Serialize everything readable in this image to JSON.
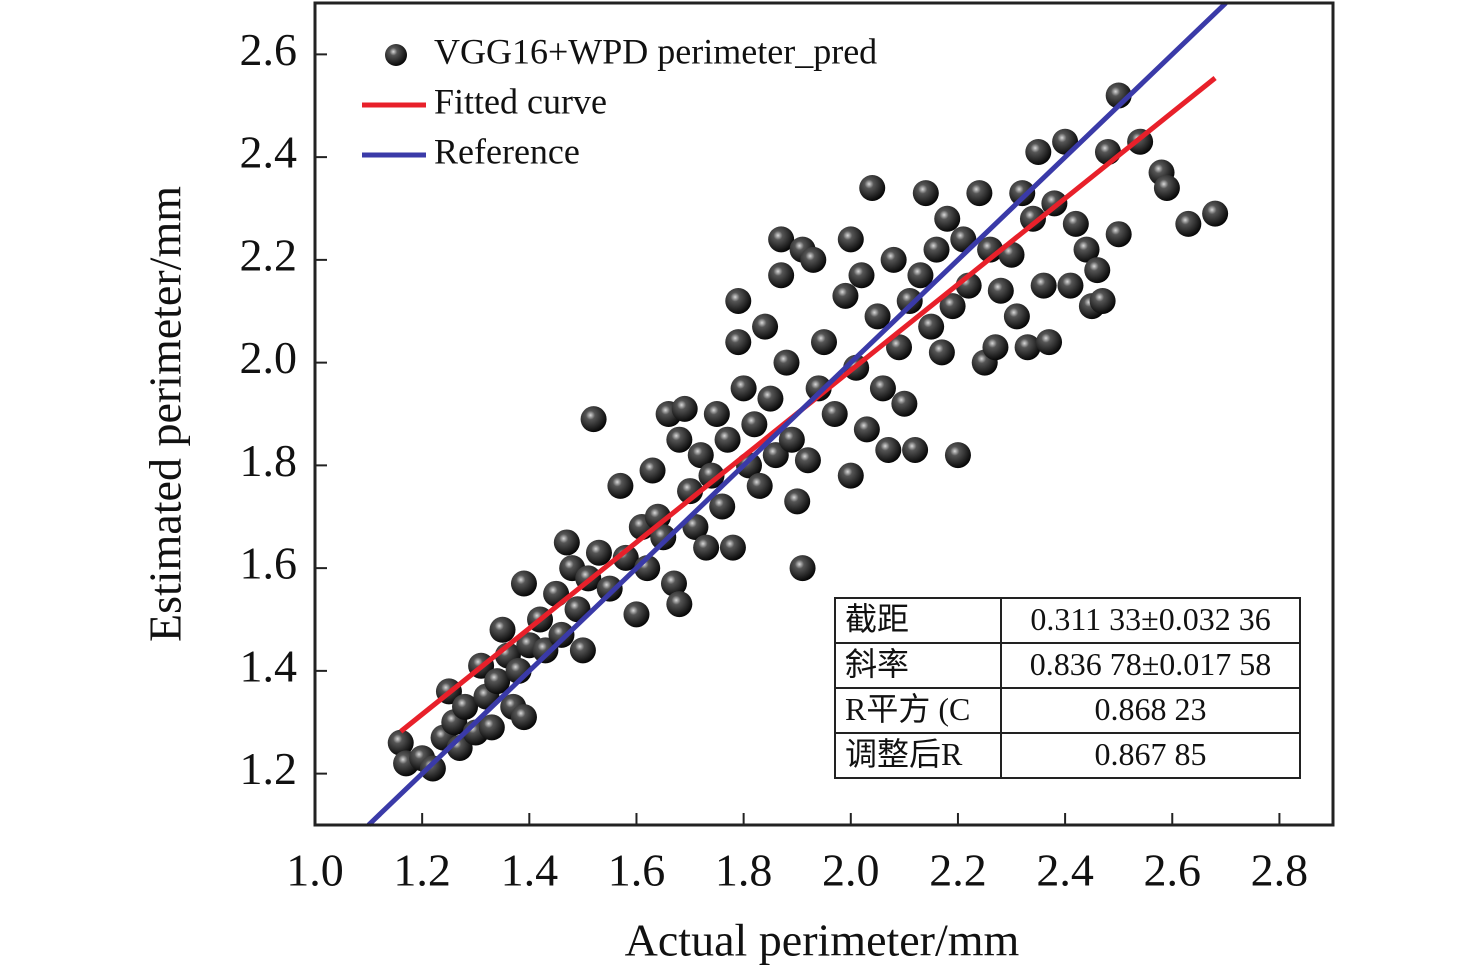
{
  "chart_data": {
    "type": "scatter",
    "xlabel": "Actual perimeter/mm",
    "ylabel": "Estimated perimeter/mm",
    "xlim": [
      1.0,
      2.9
    ],
    "ylim": [
      1.1,
      2.7
    ],
    "xticks": [
      {
        "value": 1.0,
        "label": "1.0"
      },
      1.2,
      1.4,
      1.6,
      1.8,
      {
        "value": 2.0,
        "label": "2.0"
      },
      2.2,
      2.4,
      2.6,
      2.8
    ],
    "yticks": [
      1.2,
      1.4,
      1.6,
      1.8,
      {
        "value": 2.0,
        "label": "2.0"
      },
      2.2,
      2.4,
      2.6
    ],
    "series": [
      {
        "name": "VGG16+WPD perimeter_pred",
        "style": "marker",
        "color": "#111111",
        "x": [
          1.16,
          1.17,
          1.2,
          1.22,
          1.24,
          1.25,
          1.26,
          1.27,
          1.28,
          1.3,
          1.31,
          1.32,
          1.33,
          1.34,
          1.35,
          1.36,
          1.37,
          1.38,
          1.39,
          1.39,
          1.4,
          1.42,
          1.43,
          1.45,
          1.46,
          1.47,
          1.48,
          1.49,
          1.5,
          1.51,
          1.52,
          1.53,
          1.55,
          1.57,
          1.58,
          1.6,
          1.61,
          1.62,
          1.63,
          1.64,
          1.65,
          1.66,
          1.67,
          1.68,
          1.68,
          1.69,
          1.7,
          1.71,
          1.72,
          1.73,
          1.74,
          1.75,
          1.76,
          1.77,
          1.78,
          1.79,
          1.79,
          1.8,
          1.81,
          1.82,
          1.83,
          1.84,
          1.85,
          1.86,
          1.87,
          1.87,
          1.88,
          1.89,
          1.9,
          1.91,
          1.91,
          1.92,
          1.93,
          1.94,
          1.95,
          1.97,
          1.99,
          2.0,
          2.0,
          2.01,
          2.02,
          2.03,
          2.04,
          2.05,
          2.06,
          2.07,
          2.08,
          2.09,
          2.1,
          2.11,
          2.12,
          2.13,
          2.14,
          2.15,
          2.16,
          2.17,
          2.18,
          2.19,
          2.2,
          2.21,
          2.22,
          2.24,
          2.25,
          2.26,
          2.27,
          2.28,
          2.3,
          2.31,
          2.32,
          2.33,
          2.34,
          2.35,
          2.36,
          2.37,
          2.38,
          2.4,
          2.41,
          2.42,
          2.44,
          2.45,
          2.46,
          2.47,
          2.48,
          2.5,
          2.5,
          2.54,
          2.58,
          2.59,
          2.63,
          2.68
        ],
        "y": [
          1.26,
          1.22,
          1.23,
          1.21,
          1.27,
          1.36,
          1.3,
          1.25,
          1.33,
          1.28,
          1.41,
          1.35,
          1.29,
          1.38,
          1.48,
          1.43,
          1.33,
          1.4,
          1.31,
          1.57,
          1.45,
          1.5,
          1.44,
          1.55,
          1.47,
          1.65,
          1.6,
          1.52,
          1.44,
          1.58,
          1.89,
          1.63,
          1.56,
          1.76,
          1.62,
          1.51,
          1.68,
          1.6,
          1.79,
          1.7,
          1.66,
          1.9,
          1.57,
          1.53,
          1.85,
          1.91,
          1.75,
          1.68,
          1.82,
          1.64,
          1.78,
          1.9,
          1.72,
          1.85,
          1.64,
          2.04,
          2.12,
          1.95,
          1.8,
          1.88,
          1.76,
          2.07,
          1.93,
          1.82,
          2.24,
          2.17,
          2.0,
          1.85,
          1.73,
          1.6,
          2.22,
          1.81,
          2.2,
          1.95,
          2.04,
          1.9,
          2.13,
          2.24,
          1.78,
          1.99,
          2.17,
          1.87,
          2.34,
          2.09,
          1.95,
          1.83,
          2.2,
          2.03,
          1.92,
          2.12,
          1.83,
          2.17,
          2.33,
          2.07,
          2.22,
          2.02,
          2.28,
          2.11,
          1.82,
          2.24,
          2.15,
          2.33,
          2.0,
          2.22,
          2.03,
          2.14,
          2.21,
          2.09,
          2.33,
          2.03,
          2.28,
          2.41,
          2.15,
          2.04,
          2.31,
          2.43,
          2.15,
          2.27,
          2.22,
          2.11,
          2.18,
          2.12,
          2.41,
          2.52,
          2.25,
          2.43,
          2.37,
          2.34,
          2.27,
          2.29
        ]
      },
      {
        "name": "Fitted curve",
        "style": "line",
        "color": "#e8202a",
        "x": [
          1.16,
          2.68
        ],
        "y": [
          1.282,
          2.554
        ]
      },
      {
        "name": "Reference",
        "style": "line",
        "color": "#3a3aa8",
        "x": [
          1.1,
          2.7
        ],
        "y": [
          1.1,
          2.7
        ]
      }
    ],
    "table": [
      [
        "截距",
        "0.311 33±0.032 36"
      ],
      [
        "斜率",
        "0.836 78±0.017 58"
      ],
      [
        "R平方 (C",
        "0.868 23"
      ],
      [
        "调整后R",
        "0.867 85"
      ]
    ]
  }
}
